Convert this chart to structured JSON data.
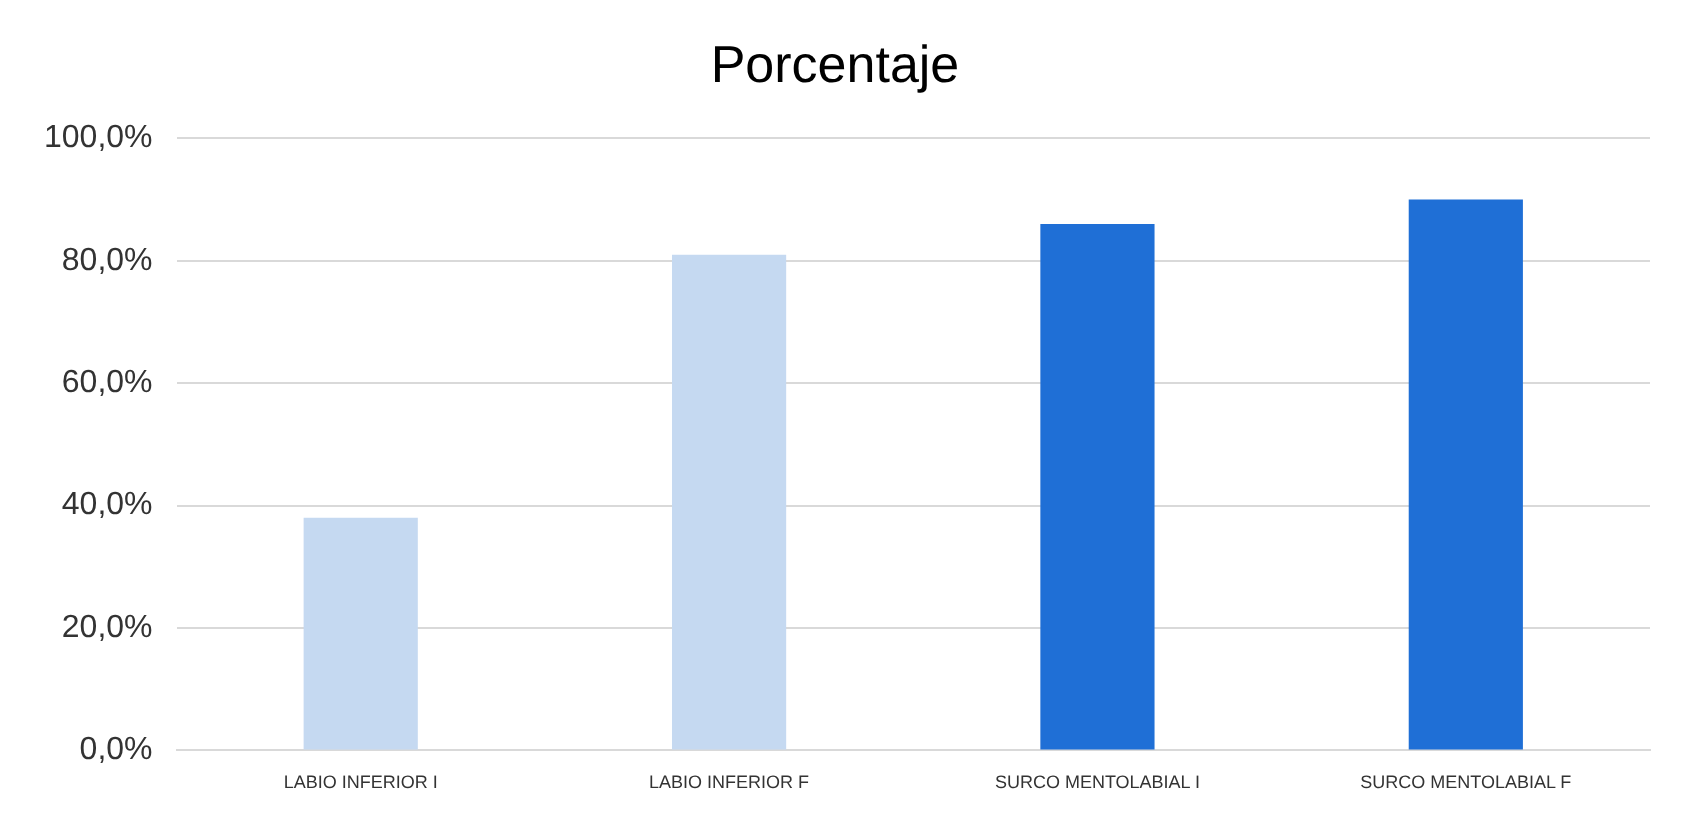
{
  "chart_data": {
    "type": "bar",
    "title": "Porcentaje",
    "categories": [
      "LABIO INFERIOR I",
      "LABIO INFERIOR F",
      "SURCO MENTOLABIAL I",
      "SURCO MENTOLABIAL F"
    ],
    "values": [
      38,
      81,
      86,
      90
    ],
    "colors": [
      "#c5d9f1",
      "#c5d9f1",
      "#1f6fd6",
      "#1f6fd6"
    ],
    "ylim": [
      0,
      100
    ],
    "yticks": [
      {
        "value": 0,
        "label": "0,0%"
      },
      {
        "value": 20,
        "label": "20,0%"
      },
      {
        "value": 40,
        "label": "40,0%"
      },
      {
        "value": 60,
        "label": "60,0%"
      },
      {
        "value": 80,
        "label": "80,0%"
      },
      {
        "value": 100,
        "label": "100,0%"
      }
    ],
    "grid": "y",
    "legend": false
  }
}
